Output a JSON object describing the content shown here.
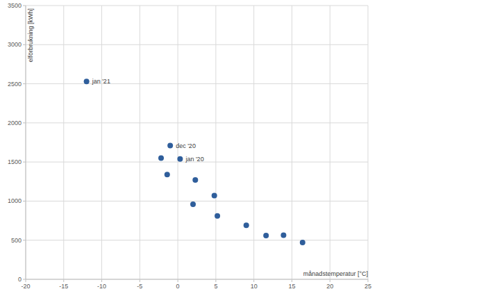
{
  "chart_data": {
    "type": "scatter",
    "x_label": "månadstemperatur [°C]",
    "y_label": "elförbrukning [kWh]",
    "x": [
      -12,
      -1.0,
      -2.2,
      0.3,
      -1.4,
      2.3,
      4.8,
      2.0,
      5.2,
      9.0,
      11.6,
      13.9,
      16.4
    ],
    "values": [
      2530,
      1710,
      1550,
      1540,
      1340,
      1270,
      1070,
      960,
      810,
      690,
      560,
      565,
      470
    ],
    "point_labels": [
      "jan '21",
      "dec '20",
      null,
      "jan '20",
      null,
      null,
      null,
      null,
      null,
      null,
      null,
      null,
      null
    ],
    "color": "#2f5e9b",
    "marker": "circle",
    "xlim": [
      -20,
      25
    ],
    "xticks": [
      -20,
      -15,
      -10,
      -5,
      0,
      5,
      10,
      15,
      20,
      25
    ],
    "ylim": [
      0,
      3500
    ],
    "yticks": [
      0,
      500,
      1000,
      1500,
      2000,
      2500,
      3000,
      3500
    ],
    "grid": true
  }
}
